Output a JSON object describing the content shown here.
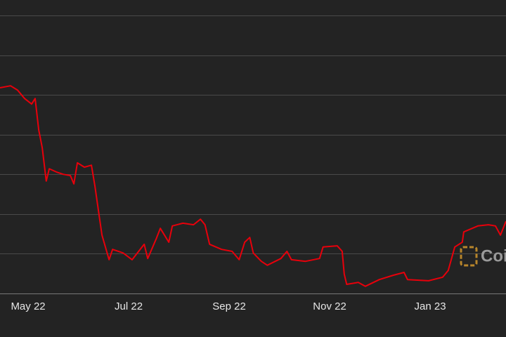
{
  "chart_data": {
    "type": "line",
    "x": [
      4.44,
      4.65,
      4.79,
      4.93,
      5.07,
      5.14,
      5.21,
      5.28,
      5.36,
      5.42,
      5.56,
      5.7,
      5.84,
      5.91,
      5.98,
      6.12,
      6.26,
      6.33,
      6.4,
      6.47,
      6.61,
      6.68,
      6.89,
      7.07,
      7.31,
      7.38,
      7.55,
      7.63,
      7.8,
      7.87,
      8.08,
      8.29,
      8.43,
      8.52,
      8.61,
      8.85,
      9.06,
      9.2,
      9.31,
      9.41,
      9.48,
      9.64,
      9.76,
      10.03,
      10.15,
      10.24,
      10.52,
      10.8,
      10.87,
      11.15,
      11.25,
      11.29,
      11.34,
      11.57,
      11.71,
      11.99,
      12.27,
      12.48,
      12.55,
      12.97,
      13.25,
      13.36,
      13.49,
      13.64,
      13.67,
      13.95,
      14.16,
      14.3,
      14.4,
      14.51
    ],
    "series": [
      {
        "color": "#e8000b",
        "values": [
          5.18,
          5.23,
          5.12,
          4.91,
          4.77,
          4.91,
          4.12,
          3.67,
          2.83,
          3.14,
          3.06,
          3.0,
          2.97,
          2.76,
          3.29,
          3.18,
          3.23,
          2.7,
          2.08,
          1.47,
          0.85,
          1.11,
          1.02,
          0.85,
          1.24,
          0.88,
          1.38,
          1.64,
          1.29,
          1.7,
          1.77,
          1.73,
          1.87,
          1.73,
          1.24,
          1.11,
          1.06,
          0.85,
          1.29,
          1.41,
          1.02,
          0.81,
          0.71,
          0.88,
          1.06,
          0.85,
          0.81,
          0.88,
          1.17,
          1.2,
          1.06,
          0.49,
          0.23,
          0.28,
          0.18,
          0.35,
          0.46,
          0.53,
          0.35,
          0.32,
          0.41,
          0.58,
          1.17,
          1.29,
          1.55,
          1.7,
          1.73,
          1.7,
          1.47,
          1.82
        ]
      }
    ],
    "xlim": [
      4.44,
      14.51
    ],
    "xticks": [
      {
        "value": 5,
        "label": "May 22"
      },
      {
        "value": 7,
        "label": "Jul 22"
      },
      {
        "value": 9,
        "label": "Sep 22"
      },
      {
        "value": 11,
        "label": "Nov 22"
      },
      {
        "value": 13,
        "label": "Jan 23"
      }
    ],
    "ylim": [
      0,
      7.39
    ],
    "yticks": [
      0,
      1,
      2,
      3,
      4,
      5,
      6,
      7
    ],
    "grid": true,
    "watermark": "Coi"
  }
}
